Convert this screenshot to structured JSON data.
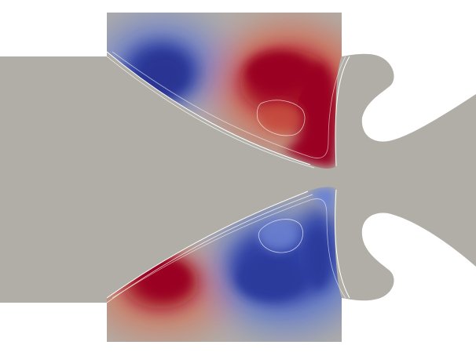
{
  "scene": {
    "kind": "flow-field-render",
    "colors": {
      "background": "#ffffff",
      "domain": "#b1aea8",
      "positive": "#9a0421",
      "positive_mid": "#cc4a3a",
      "positive_light": "#e08a70",
      "negative": "#2c3a9c",
      "negative_mid": "#4a64c8",
      "negative_light": "#8fa6dc",
      "contour": "#ffffff"
    }
  }
}
